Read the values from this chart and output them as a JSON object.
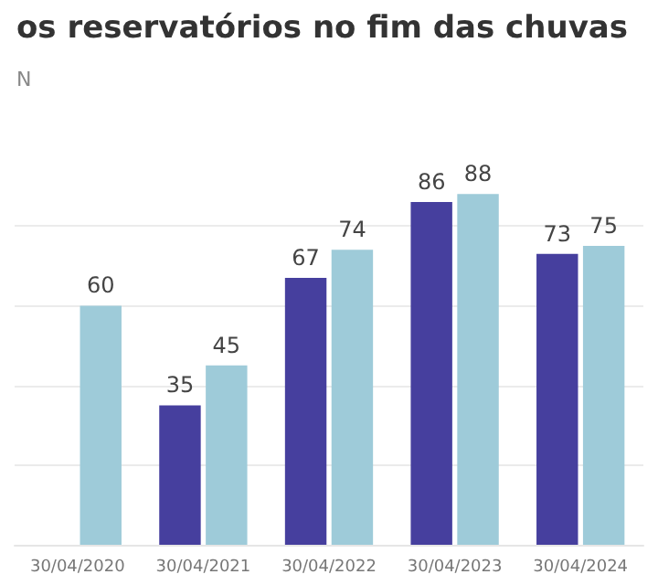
{
  "chart_data": {
    "type": "bar",
    "title": "os reservatórios no fim das chuvas",
    "subtitle": "N",
    "categories": [
      "30/04/2020",
      "30/04/2021",
      "30/04/2022",
      "30/04/2023",
      "30/04/2024"
    ],
    "series": [
      {
        "color": "#463f9e",
        "values": [
          null,
          35,
          67,
          86,
          73
        ]
      },
      {
        "color": "#9ecbd9",
        "values": [
          60,
          45,
          74,
          88,
          75
        ]
      }
    ],
    "yticks": [
      {
        "value": 0,
        "label": null
      },
      {
        "value": 20,
        "label": null
      },
      {
        "value": 40,
        "label": null
      },
      {
        "value": 60,
        "label": null
      },
      {
        "value": 80,
        "label": null
      }
    ],
    "grid": "y",
    "data_labels": true,
    "tick_labels": "x"
  }
}
